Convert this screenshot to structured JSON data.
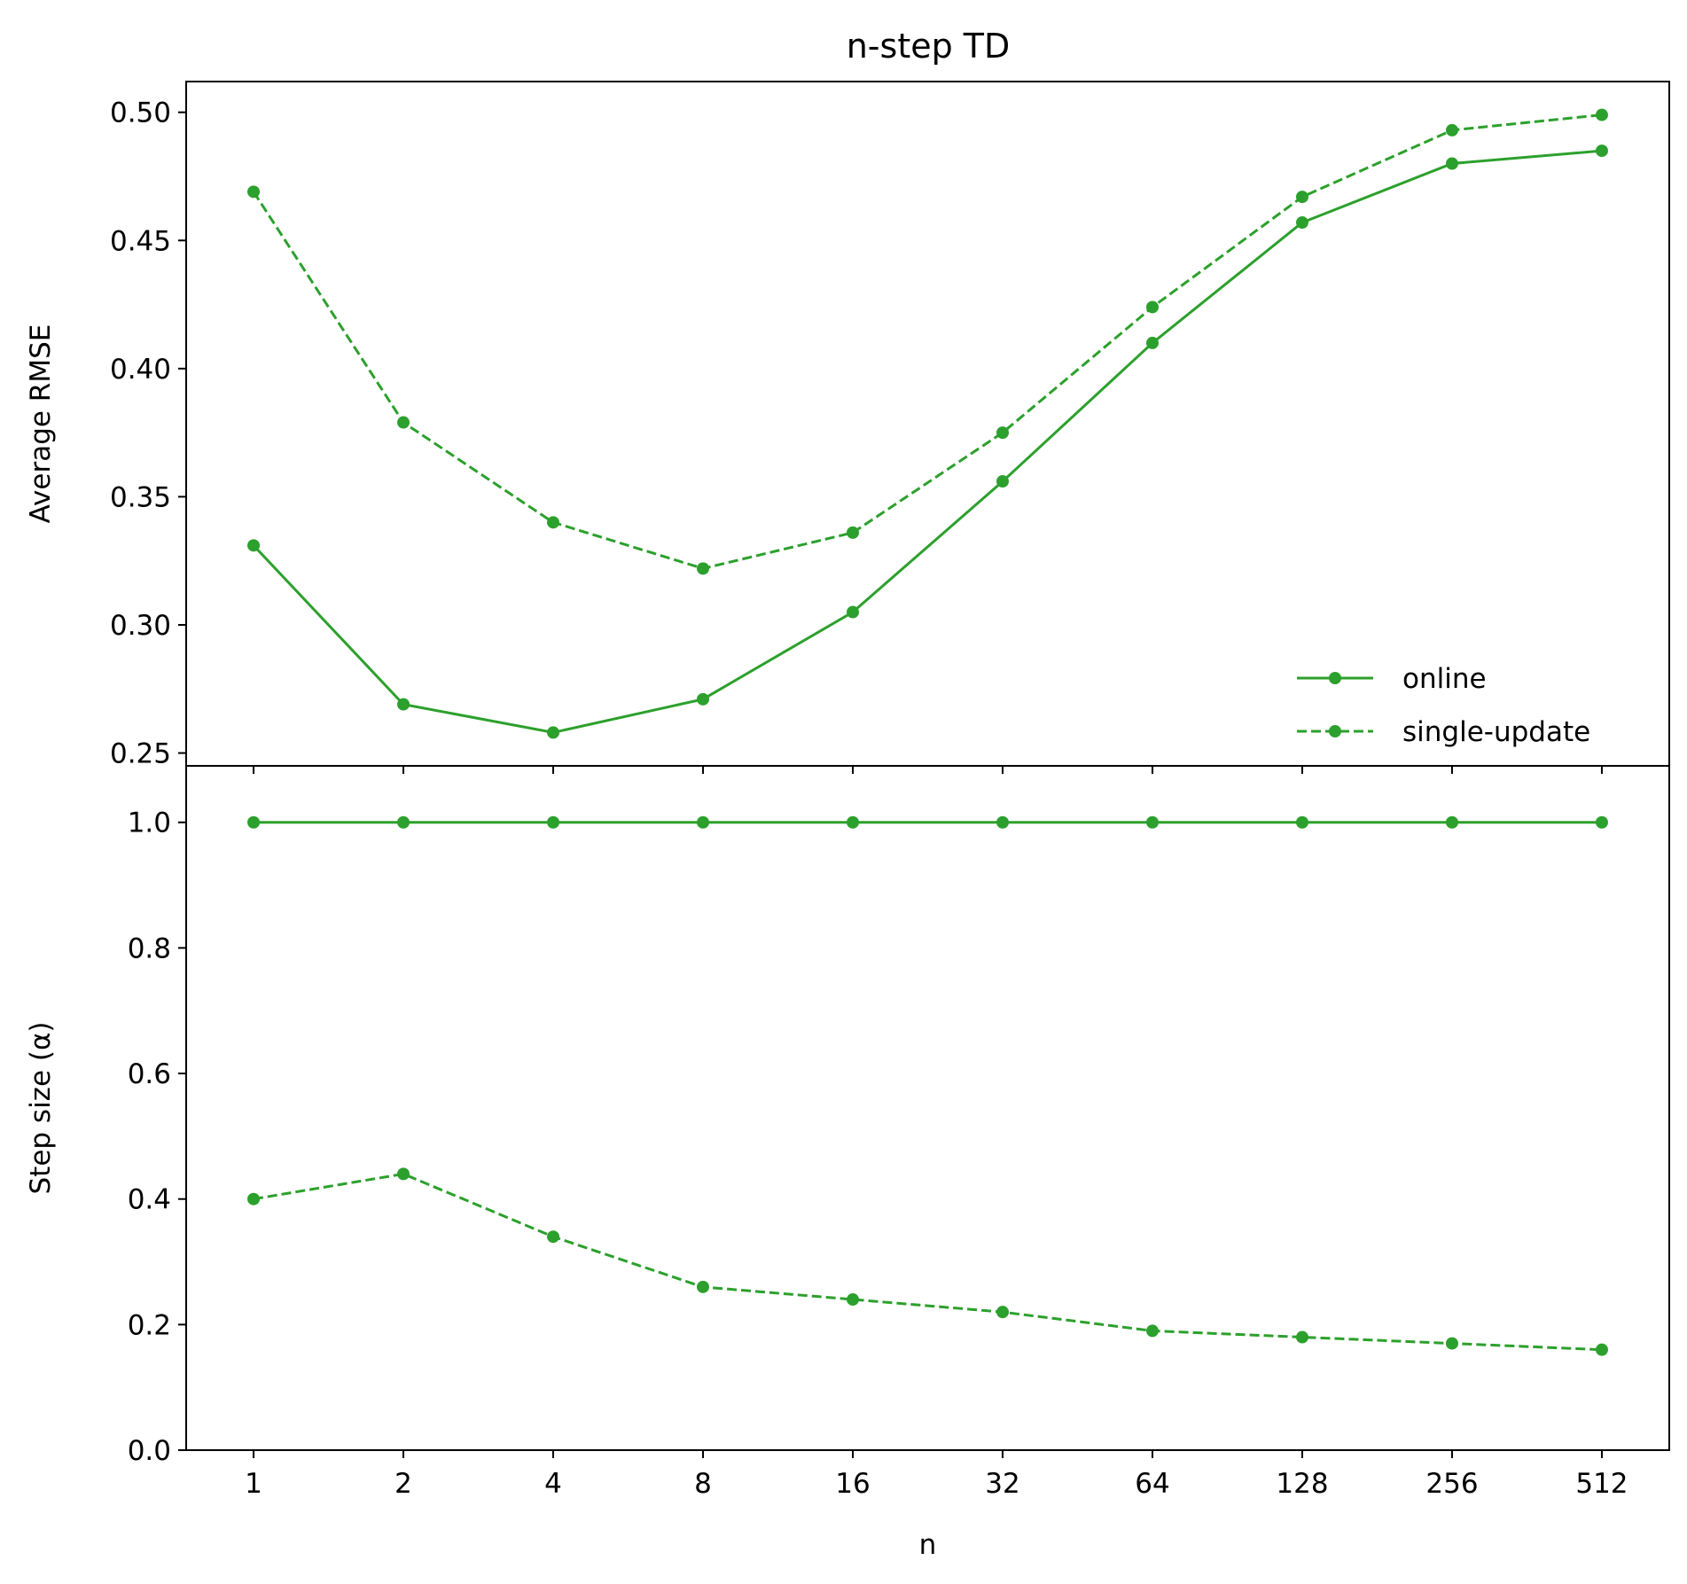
{
  "title": "n-step TD",
  "chart_data": [
    {
      "type": "line",
      "panel": "top",
      "title": "n-step TD",
      "xlabel": "",
      "ylabel": "Average RMSE",
      "ylim": [
        0.245,
        0.512
      ],
      "yticks": [
        "0.25",
        "0.30",
        "0.35",
        "0.40",
        "0.45",
        "0.50"
      ],
      "yticks_values": [
        0.25,
        0.3,
        0.35,
        0.4,
        0.45,
        0.5
      ],
      "categories": [
        "1",
        "2",
        "4",
        "8",
        "16",
        "32",
        "64",
        "128",
        "256",
        "512"
      ],
      "x": [
        1,
        2,
        4,
        8,
        16,
        32,
        64,
        128,
        256,
        512
      ],
      "x_scale": "log2",
      "grid": false,
      "legend_position": "lower-right",
      "series": [
        {
          "name": "online",
          "style": "solid",
          "color": "#2ca02c",
          "values": [
            0.331,
            0.269,
            0.258,
            0.271,
            0.305,
            0.356,
            0.41,
            0.457,
            0.48,
            0.485
          ]
        },
        {
          "name": "single-update",
          "style": "dashed",
          "color": "#2ca02c",
          "values": [
            0.469,
            0.379,
            0.34,
            0.322,
            0.336,
            0.375,
            0.424,
            0.467,
            0.493,
            0.499
          ]
        }
      ]
    },
    {
      "type": "line",
      "panel": "bottom",
      "xlabel": "n",
      "ylabel": "Step size (α)",
      "ylim": [
        0.0,
        1.09
      ],
      "yticks": [
        "0.0",
        "0.2",
        "0.4",
        "0.6",
        "0.8",
        "1.0"
      ],
      "yticks_values": [
        0.0,
        0.2,
        0.4,
        0.6,
        0.8,
        1.0
      ],
      "categories": [
        "1",
        "2",
        "4",
        "8",
        "16",
        "32",
        "64",
        "128",
        "256",
        "512"
      ],
      "x": [
        1,
        2,
        4,
        8,
        16,
        32,
        64,
        128,
        256,
        512
      ],
      "x_scale": "log2",
      "grid": false,
      "series": [
        {
          "name": "online",
          "style": "solid",
          "color": "#2ca02c",
          "values": [
            1.0,
            1.0,
            1.0,
            1.0,
            1.0,
            1.0,
            1.0,
            1.0,
            1.0,
            1.0
          ]
        },
        {
          "name": "single-update",
          "style": "dashed",
          "color": "#2ca02c",
          "values": [
            0.4,
            0.44,
            0.34,
            0.26,
            0.24,
            0.22,
            0.19,
            0.18,
            0.17,
            0.16
          ]
        }
      ]
    }
  ]
}
